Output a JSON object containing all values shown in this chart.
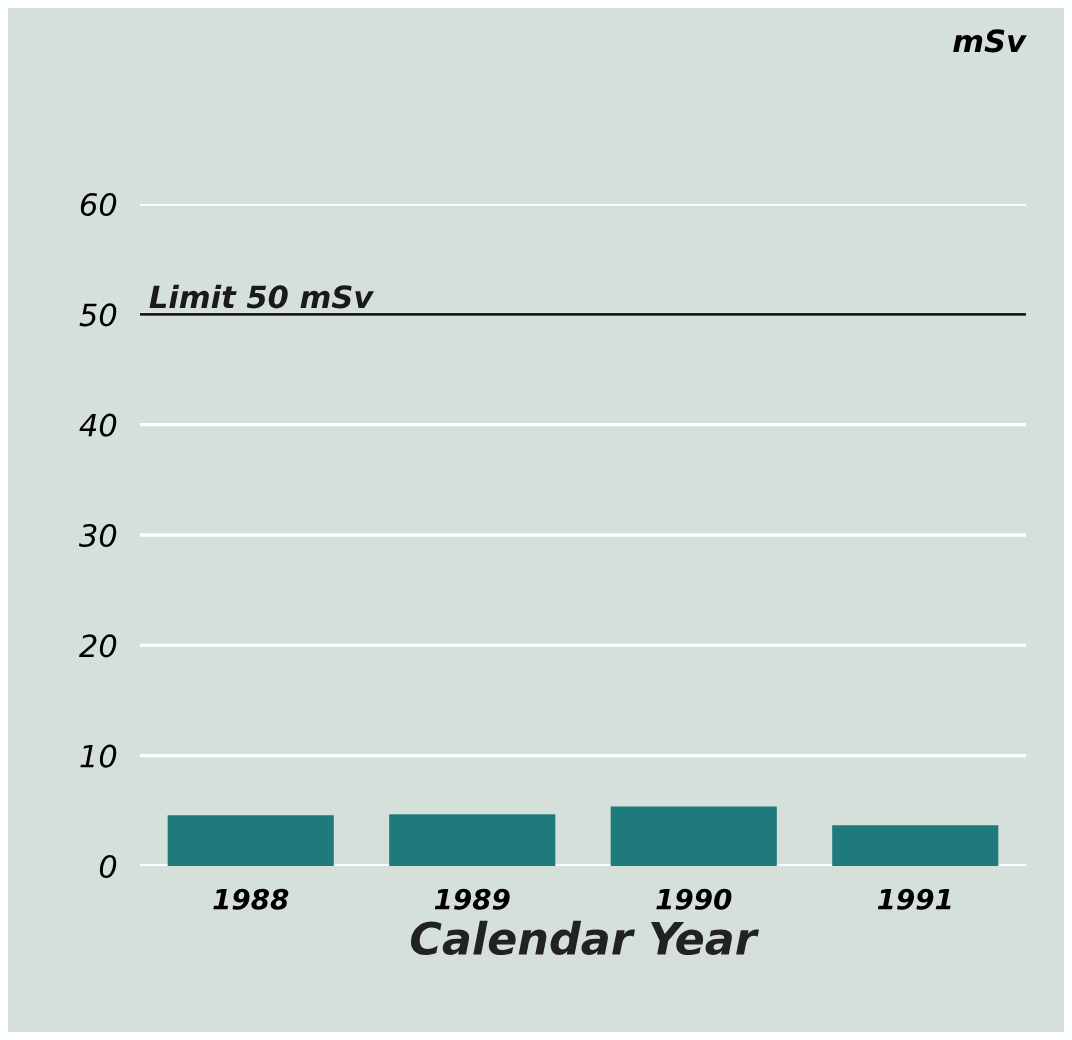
{
  "chart_data": {
    "type": "bar",
    "xlabel": "Calendar Year",
    "ylabel": "mSv",
    "categories": [
      "1988",
      "1989",
      "1990",
      "1991"
    ],
    "values": [
      4.6,
      4.7,
      5.4,
      3.7
    ],
    "color": "#1f7b7b",
    "ylim": [
      0,
      60
    ],
    "yticks": [
      0,
      10,
      20,
      30,
      40,
      50,
      60
    ],
    "grid": "y",
    "ref_lines": [
      {
        "axis": "y",
        "value": 50,
        "label": "Limit 50 mSv",
        "color": "#1a1a1a"
      }
    ]
  }
}
